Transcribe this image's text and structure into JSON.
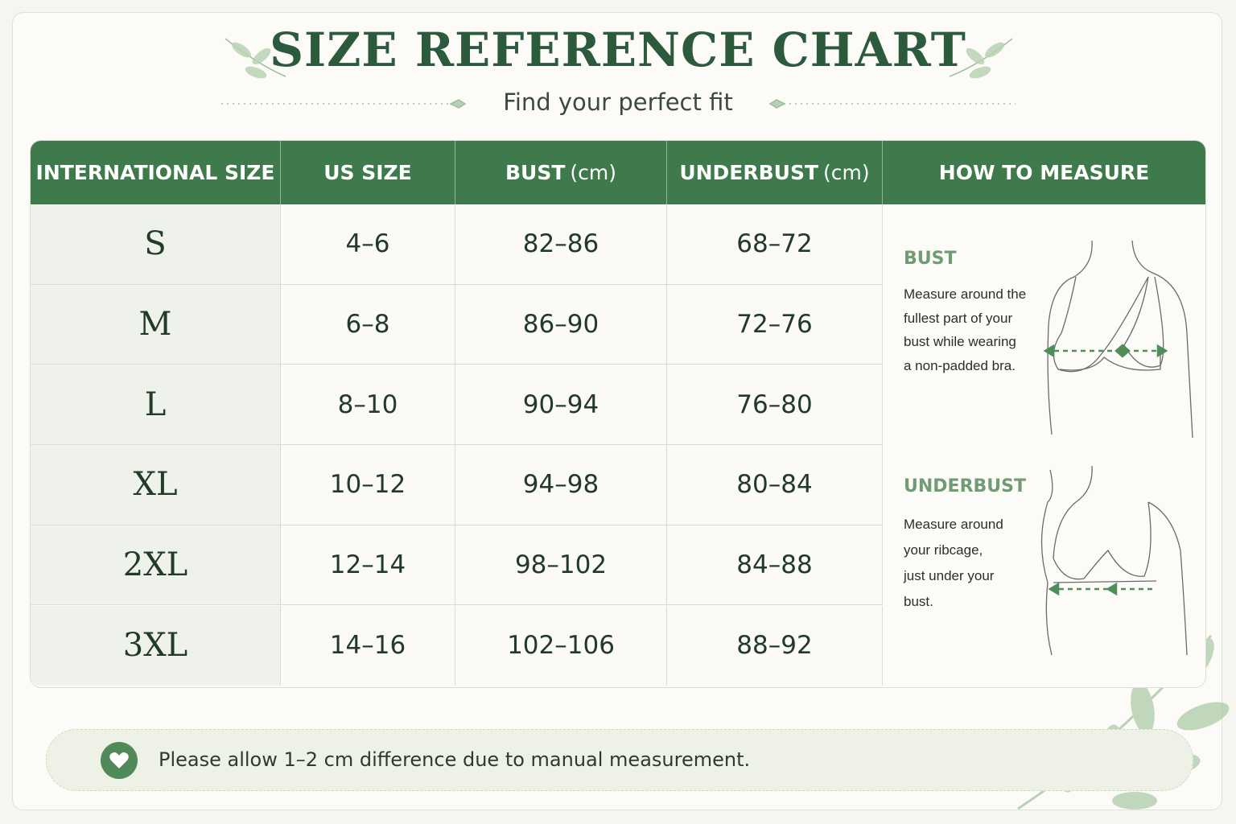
{
  "header": {
    "title": "SIZE REFERENCE CHART",
    "subtitle": "Find your perfect fit"
  },
  "table": {
    "columns": [
      {
        "label": "INTERNATIONAL SIZE"
      },
      {
        "label": "US SIZE"
      },
      {
        "label": "BUST",
        "unit": "(cm)"
      },
      {
        "label": "UNDERBUST",
        "unit": "(cm)"
      },
      {
        "label": "HOW TO MEASURE"
      }
    ],
    "rows": [
      [
        "S",
        "4–6",
        "82–86",
        "68–72"
      ],
      [
        "M",
        "6–8",
        "86–90",
        "72–76"
      ],
      [
        "L",
        "8–10",
        "90–94",
        "76–80"
      ],
      [
        "XL",
        "10–12",
        "94–98",
        "80–84"
      ],
      [
        "2XL",
        "12–14",
        "98–102",
        "84–88"
      ],
      [
        "3XL",
        "14–16",
        "102–106",
        "88–92"
      ]
    ]
  },
  "measure": {
    "bust": {
      "title": "BUST",
      "lines": [
        "Measure around the",
        "fullest part of your",
        "bust while wearing",
        "a non-padded bra."
      ]
    },
    "underbust": {
      "title": "UNDERBUST",
      "lines": [
        "Measure around",
        "your ribcage,",
        "just under your",
        "bust."
      ]
    }
  },
  "note": "Please allow 1–2 cm difference due to manual measurement."
}
